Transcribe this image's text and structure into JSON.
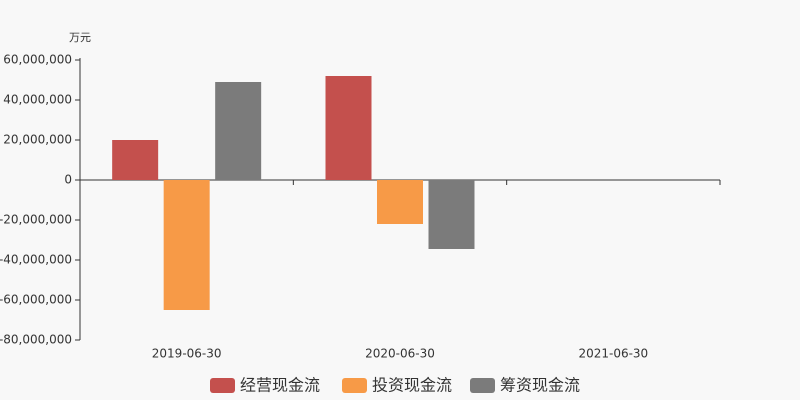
{
  "chart_data": {
    "type": "bar",
    "y_unit": "万元",
    "categories": [
      "2019-06-30",
      "2020-06-30",
      "2021-06-30"
    ],
    "series": [
      {
        "name": "经营现金流",
        "color": "#c4504d",
        "values": [
          20000000,
          52000000,
          null
        ]
      },
      {
        "name": "投资现金流",
        "color": "#f79a47",
        "values": [
          -65000000,
          -22000000,
          null
        ]
      },
      {
        "name": "筹资现金流",
        "color": "#7b7b7b",
        "values": [
          49000000,
          -34500000,
          null
        ]
      }
    ],
    "ylim": [
      -80000000,
      60000000
    ],
    "yticks": [
      {
        "value": -80000000,
        "label": "-80,000,000"
      },
      {
        "value": -60000000,
        "label": "-60,000,000"
      },
      {
        "value": -40000000,
        "label": "-40,000,000"
      },
      {
        "value": -20000000,
        "label": "-20,000,000"
      },
      0,
      {
        "value": 20000000,
        "label": "20,000,000"
      },
      {
        "value": 40000000,
        "label": "40,000,000"
      },
      {
        "value": 60000000,
        "label": "60,000,000"
      }
    ],
    "legend": "bottom"
  }
}
